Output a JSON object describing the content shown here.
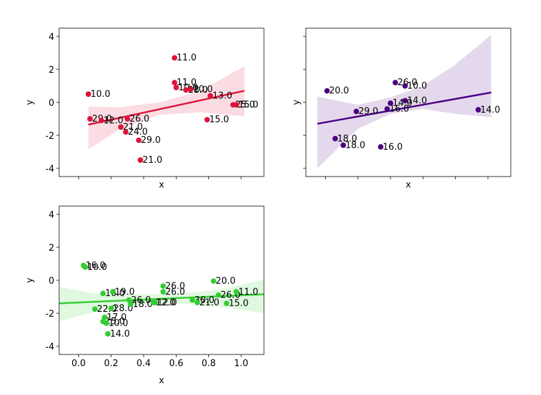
{
  "chart_data": [
    {
      "type": "scatter",
      "title": "",
      "xlabel": "x",
      "ylabel": "y",
      "xlim": [
        -0.12,
        1.14
      ],
      "ylim": [
        -4.5,
        4.5
      ],
      "xticks": [
        0.0,
        0.2,
        0.4,
        0.6,
        0.8,
        1.0
      ],
      "xtick_labels_shown": false,
      "yticks": [
        -4,
        -2,
        0,
        2,
        4
      ],
      "color": "#dc143c",
      "points": [
        {
          "x": 0.06,
          "y": 0.5,
          "label": "10.0"
        },
        {
          "x": 0.07,
          "y": -1.0,
          "label": "29.0"
        },
        {
          "x": 0.14,
          "y": -1.1,
          "label": "12.0"
        },
        {
          "x": 0.26,
          "y": -1.5,
          "label": "21.0"
        },
        {
          "x": 0.29,
          "y": -1.8,
          "label": "24.0"
        },
        {
          "x": 0.3,
          "y": -1.0,
          "label": "26.0"
        },
        {
          "x": 0.37,
          "y": -2.3,
          "label": "29.0"
        },
        {
          "x": 0.38,
          "y": -3.5,
          "label": "21.0"
        },
        {
          "x": 0.59,
          "y": 2.7,
          "label": "11.0"
        },
        {
          "x": 0.59,
          "y": 1.2,
          "label": "11.0"
        },
        {
          "x": 0.6,
          "y": 0.9,
          "label": "10.0"
        },
        {
          "x": 0.66,
          "y": 0.75,
          "label": "28.0"
        },
        {
          "x": 0.69,
          "y": 0.8,
          "label": "10.0"
        },
        {
          "x": 0.79,
          "y": -1.05,
          "label": "15.0"
        },
        {
          "x": 0.81,
          "y": 0.4,
          "label": "13.0"
        },
        {
          "x": 0.95,
          "y": -0.15,
          "label": "25.0"
        },
        {
          "x": 0.97,
          "y": -0.15,
          "label": "15.0"
        }
      ],
      "regression": {
        "x": [
          0.06,
          1.02
        ],
        "y": [
          -1.35,
          0.7
        ]
      },
      "ci_band": {
        "x": [
          0.06,
          0.25,
          0.5,
          0.75,
          1.02
        ],
        "lower": [
          -2.85,
          -1.65,
          -0.75,
          -0.6,
          -0.85
        ],
        "upper": [
          -0.25,
          -0.3,
          0.0,
          0.7,
          2.2
        ]
      },
      "grid": false
    },
    {
      "type": "scatter",
      "title": "",
      "xlabel": "x",
      "ylabel": "y",
      "xlim": [
        -0.12,
        1.14
      ],
      "ylim": [
        -4.5,
        4.5
      ],
      "xticks": [
        0.0,
        0.2,
        0.4,
        0.6,
        0.8,
        1.0
      ],
      "xtick_labels_shown": false,
      "yticks": [
        -4,
        -2,
        0,
        2,
        4
      ],
      "ytick_labels_shown": false,
      "color": "#4b0082",
      "points": [
        {
          "x": 0.01,
          "y": 0.7,
          "label": "20.0"
        },
        {
          "x": 0.06,
          "y": -2.2,
          "label": "18.0"
        },
        {
          "x": 0.11,
          "y": -2.6,
          "label": "18.0"
        },
        {
          "x": 0.19,
          "y": -0.55,
          "label": "29.0"
        },
        {
          "x": 0.34,
          "y": -2.7,
          "label": "16.0"
        },
        {
          "x": 0.38,
          "y": -0.4,
          "label": "16.0"
        },
        {
          "x": 0.4,
          "y": -0.05,
          "label": "14.0"
        },
        {
          "x": 0.43,
          "y": 1.2,
          "label": "26.0"
        },
        {
          "x": 0.49,
          "y": 1.0,
          "label": "10.0"
        },
        {
          "x": 0.49,
          "y": 0.1,
          "label": "14.0"
        },
        {
          "x": 0.94,
          "y": -0.45,
          "label": "14.0"
        }
      ],
      "regression": {
        "x": [
          -0.05,
          1.02
        ],
        "y": [
          -1.3,
          0.6
        ]
      },
      "ci_band": {
        "x": [
          -0.05,
          0.2,
          0.4,
          0.6,
          0.8,
          1.02
        ],
        "lower": [
          -4.0,
          -1.6,
          -0.7,
          -0.4,
          -0.7,
          -0.9
        ],
        "upper": [
          0.35,
          -0.15,
          0.3,
          1.0,
          2.3,
          4.1
        ]
      },
      "grid": false
    },
    {
      "type": "scatter",
      "title": "",
      "xlabel": "x",
      "ylabel": "y",
      "xlim": [
        -0.12,
        1.14
      ],
      "ylim": [
        -4.5,
        4.5
      ],
      "xticks": [
        0.0,
        0.2,
        0.4,
        0.6,
        0.8,
        1.0
      ],
      "xtick_labels": [
        "0.0",
        "0.2",
        "0.4",
        "0.6",
        "0.8",
        "1.0"
      ],
      "yticks": [
        -4,
        -2,
        0,
        2,
        4
      ],
      "color": "#32cd32",
      "points": [
        {
          "x": 0.03,
          "y": 0.9,
          "label": "16.0"
        },
        {
          "x": 0.04,
          "y": 0.8,
          "label": "10.0"
        },
        {
          "x": 0.1,
          "y": -1.75,
          "label": "22.0"
        },
        {
          "x": 0.15,
          "y": -0.8,
          "label": "16.0"
        },
        {
          "x": 0.15,
          "y": -2.5,
          "label": "15.0"
        },
        {
          "x": 0.16,
          "y": -2.25,
          "label": "17.0"
        },
        {
          "x": 0.17,
          "y": -2.6,
          "label": "10.0"
        },
        {
          "x": 0.18,
          "y": -3.25,
          "label": "14.0"
        },
        {
          "x": 0.2,
          "y": -1.7,
          "label": "28.0"
        },
        {
          "x": 0.21,
          "y": -0.7,
          "label": "19.0"
        },
        {
          "x": 0.31,
          "y": -1.2,
          "label": "26.0"
        },
        {
          "x": 0.32,
          "y": -1.45,
          "label": "18.0"
        },
        {
          "x": 0.46,
          "y": -1.35,
          "label": "12.0"
        },
        {
          "x": 0.47,
          "y": -1.35,
          "label": "12.0"
        },
        {
          "x": 0.52,
          "y": -0.35,
          "label": "26.0"
        },
        {
          "x": 0.52,
          "y": -0.7,
          "label": "26.0"
        },
        {
          "x": 0.7,
          "y": -1.2,
          "label": "30.0"
        },
        {
          "x": 0.73,
          "y": -1.35,
          "label": "21.0"
        },
        {
          "x": 0.83,
          "y": -0.05,
          "label": "20.0"
        },
        {
          "x": 0.86,
          "y": -0.9,
          "label": "26.0"
        },
        {
          "x": 0.91,
          "y": -1.4,
          "label": "15.0"
        },
        {
          "x": 0.97,
          "y": -0.7,
          "label": "11.0"
        }
      ],
      "regression": {
        "x": [
          -0.12,
          1.14
        ],
        "y": [
          -1.4,
          -0.85
        ]
      },
      "ci_band": {
        "x": [
          -0.12,
          0.1,
          0.3,
          0.5,
          0.7,
          0.9,
          1.14
        ],
        "lower": [
          -2.5,
          -1.9,
          -1.55,
          -1.4,
          -1.45,
          -1.65,
          -2.0
        ],
        "upper": [
          -0.4,
          -0.8,
          -0.85,
          -0.85,
          -0.75,
          -0.5,
          0.05
        ]
      },
      "grid": false
    }
  ]
}
